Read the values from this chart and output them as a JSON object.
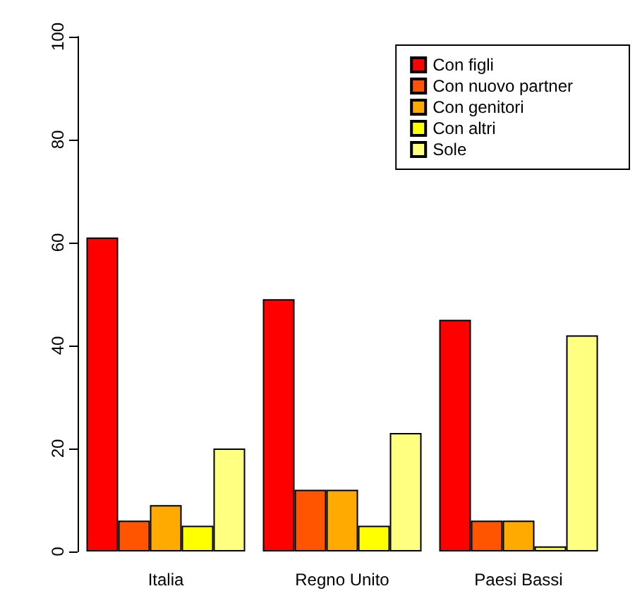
{
  "chart_data": {
    "type": "bar",
    "categories": [
      "Italia",
      "Regno Unito",
      "Paesi Bassi"
    ],
    "series": [
      {
        "name": "Con figli",
        "color": "#ff0000",
        "values": [
          61,
          49,
          45
        ]
      },
      {
        "name": "Con nuovo partner",
        "color": "#ff5500",
        "values": [
          6,
          12,
          6
        ]
      },
      {
        "name": "Con genitori",
        "color": "#ffaa00",
        "values": [
          9,
          12,
          6
        ]
      },
      {
        "name": "Con altri",
        "color": "#ffff00",
        "values": [
          5,
          5,
          1
        ]
      },
      {
        "name": "Sole",
        "color": "#ffff80",
        "values": [
          20,
          23,
          42
        ]
      }
    ],
    "ylim": [
      0,
      100
    ],
    "yticks": [
      0,
      20,
      40,
      60,
      80,
      100
    ],
    "grid": false,
    "legend": "top right"
  }
}
